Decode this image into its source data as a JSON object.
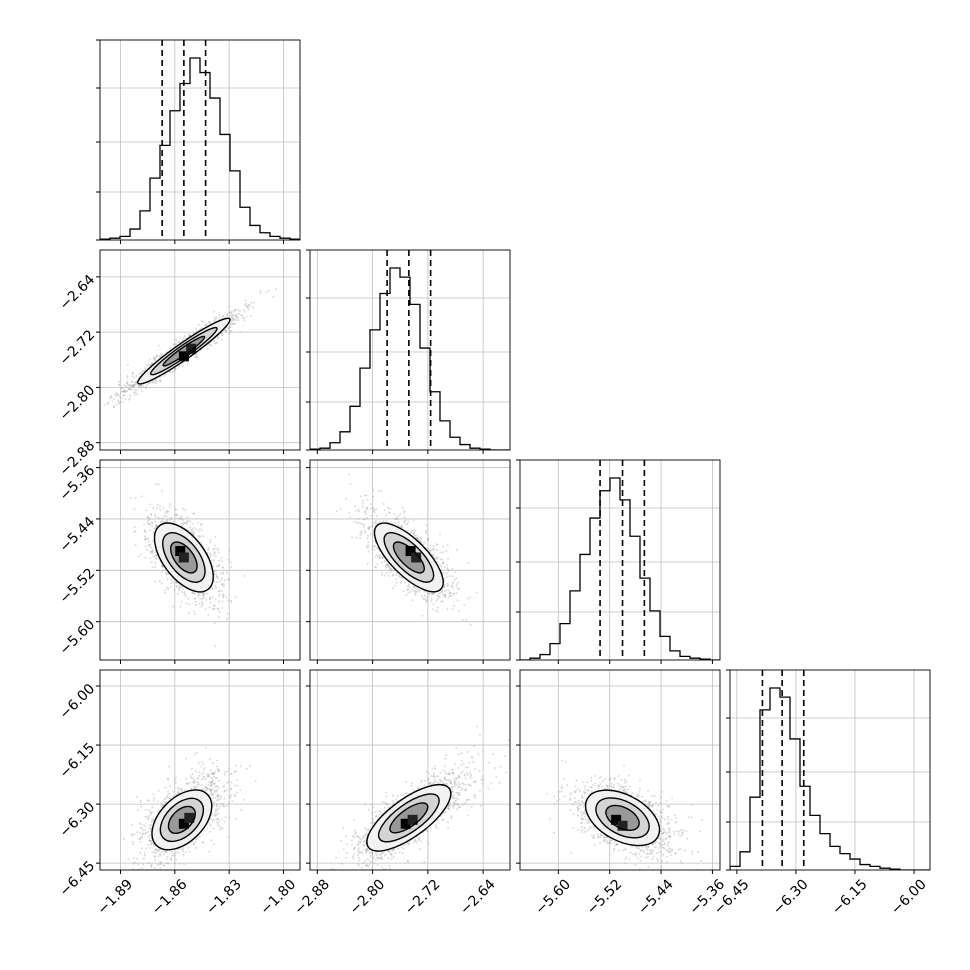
{
  "chart_data": {
    "type": "corner",
    "grid": true,
    "params": [
      {
        "ticks": [
          -1.89,
          -1.86,
          -1.83,
          -1.8
        ],
        "tick_labels": [
          "−1.89",
          "−1.86",
          "−1.83",
          "−1.80"
        ],
        "range": [
          -1.9013,
          -1.7909
        ],
        "quantiles": [
          -1.867,
          -1.855,
          -1.843
        ],
        "median": -1.855,
        "sd": 0.012
      },
      {
        "ticks": [
          -2.88,
          -2.8,
          -2.72,
          -2.64
        ],
        "tick_labels": [
          "−2.88",
          "−2.80",
          "−2.72",
          "−2.64"
        ],
        "range": [
          -2.8906,
          -2.6011
        ],
        "quantiles": [
          -2.779,
          -2.7475,
          -2.716
        ],
        "median": -2.7475,
        "sd": 0.031
      },
      {
        "ticks": [
          -5.6,
          -5.52,
          -5.44,
          -5.36
        ],
        "tick_labels": [
          "−5.60",
          "−5.52",
          "−5.44",
          "−5.36"
        ],
        "range": [
          -5.6597,
          -5.3482
        ],
        "quantiles": [
          -5.535,
          -5.5,
          -5.466
        ],
        "median": -5.5,
        "sd": 0.034
      },
      {
        "ticks": [
          -6.45,
          -6.3,
          -6.15,
          -6.0
        ],
        "tick_labels": [
          "−6.45",
          "−6.30",
          "−6.15",
          "−6.00"
        ],
        "range": [
          -6.4674,
          -5.9594
        ],
        "quantiles": [
          -6.385,
          -6.335,
          -6.28
        ],
        "median": -6.335,
        "sd": 0.05
      }
    ],
    "histograms": [
      {
        "param": 0,
        "edges": [
          -1.9013,
          -1.7909
        ],
        "counts": [
          0.5,
          1,
          2,
          6,
          16,
          34,
          52,
          71,
          86,
          100,
          92,
          78,
          58,
          38,
          18,
          8,
          4,
          2,
          1,
          0.5
        ]
      },
      {
        "param": 1,
        "edges": [
          -2.8906,
          -2.6011
        ],
        "counts": [
          0.5,
          1,
          4,
          10,
          24,
          45,
          66,
          86,
          100,
          95,
          80,
          56,
          32,
          16,
          7,
          3,
          1,
          0.5,
          0,
          0
        ]
      },
      {
        "param": 2,
        "edges": [
          -5.6597,
          -5.3482
        ],
        "counts": [
          0,
          1,
          3,
          9,
          20,
          38,
          58,
          78,
          93,
          100,
          88,
          68,
          45,
          27,
          13,
          5,
          2,
          1,
          0.5,
          0
        ]
      },
      {
        "param": 3,
        "edges": [
          -6.4674,
          -5.9594
        ],
        "counts": [
          2,
          10,
          40,
          88,
          100,
          95,
          72,
          46,
          30,
          20,
          13,
          9,
          6,
          3,
          2,
          1,
          0.5,
          0,
          0,
          0
        ]
      }
    ],
    "pairs": [
      {
        "x": 0,
        "y": 1,
        "shape": "narrow positive correlation",
        "densest": [
          [
            -1.855,
            -2.755
          ],
          [
            -1.851,
            -2.744
          ]
        ]
      },
      {
        "x": 0,
        "y": 2,
        "shape": "negative correlation",
        "densest": [
          [
            -1.857,
            -5.49
          ],
          [
            -1.855,
            -5.5
          ]
        ]
      },
      {
        "x": 1,
        "y": 2,
        "shape": "negative correlation",
        "densest": [
          [
            -2.745,
            -5.49
          ],
          [
            -2.737,
            -5.5
          ]
        ]
      },
      {
        "x": 0,
        "y": 3,
        "shape": "positive correlation",
        "densest": [
          [
            -1.855,
            -6.35
          ],
          [
            -1.852,
            -6.335
          ]
        ]
      },
      {
        "x": 1,
        "y": 3,
        "shape": "positive correlation",
        "densest": [
          [
            -2.752,
            -6.35
          ],
          [
            -2.742,
            -6.34
          ]
        ]
      },
      {
        "x": 2,
        "y": 3,
        "shape": "negative correlation",
        "densest": [
          [
            -5.51,
            -6.34
          ],
          [
            -5.5,
            -6.355
          ]
        ]
      }
    ]
  }
}
